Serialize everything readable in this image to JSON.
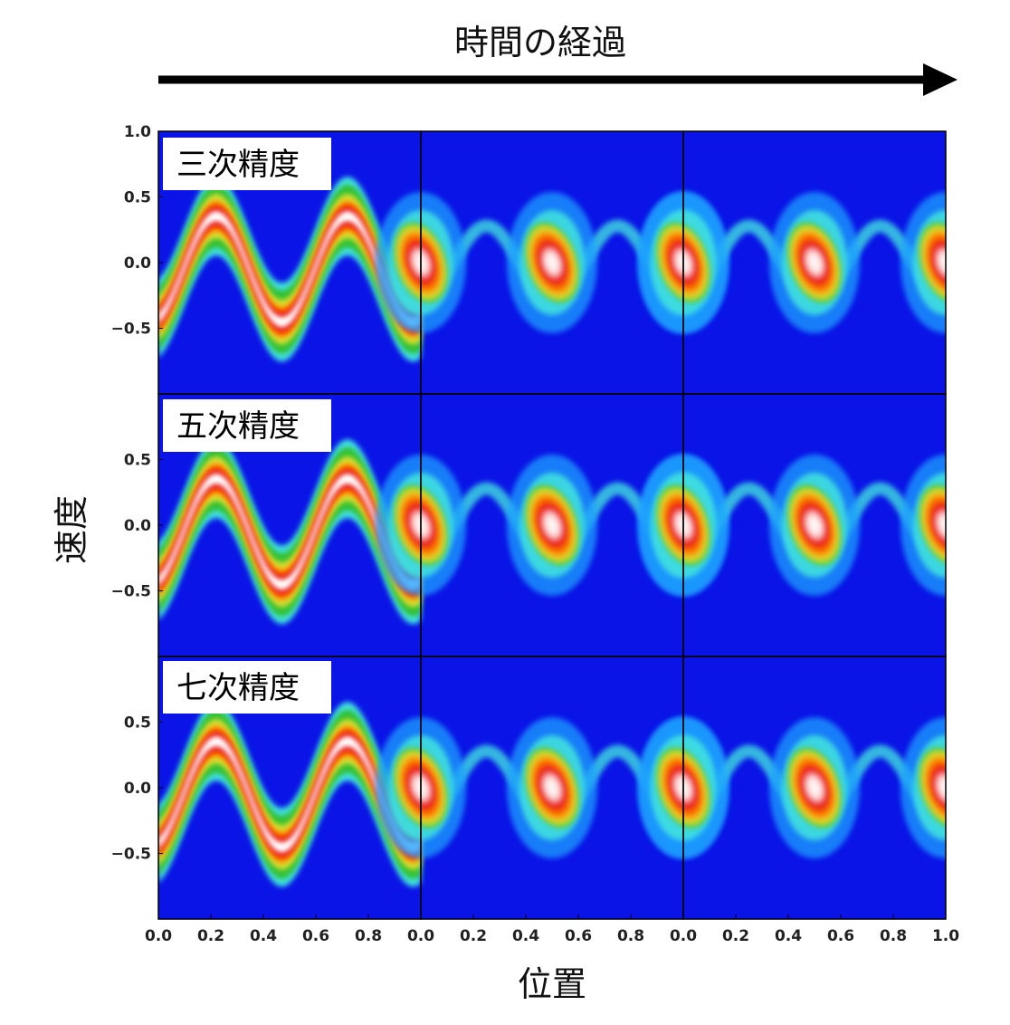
{
  "chart_data": {
    "type": "heatmap",
    "time_label": "時間の経過",
    "xlabel": "位置",
    "ylabel": "速度",
    "row_labels": [
      "三次精度",
      "五次精度",
      "七次精度"
    ],
    "column_xticks": [
      [
        "0.0",
        "0.2",
        "0.4",
        "0.6",
        "0.8"
      ],
      [
        "0.0",
        "0.2",
        "0.4",
        "0.6",
        "0.8"
      ],
      [
        "0.0",
        "0.2",
        "0.4",
        "0.6",
        "0.8",
        "1.0"
      ]
    ],
    "row_yticks": [
      [
        "1.0",
        "0.5",
        "0.0",
        "−0.5"
      ],
      [
        "0.5",
        "0.0",
        "−0.5"
      ],
      [
        "0.5",
        "0.0",
        "−0.5"
      ]
    ],
    "xlim": [
      0,
      1
    ],
    "ylim": [
      -1,
      1
    ],
    "colormap": [
      "#0a14e6",
      "#1ea0ff",
      "#40e0e0",
      "#30c030",
      "#d8e030",
      "#ff8c00",
      "#e81010",
      "#ffffff"
    ]
  }
}
